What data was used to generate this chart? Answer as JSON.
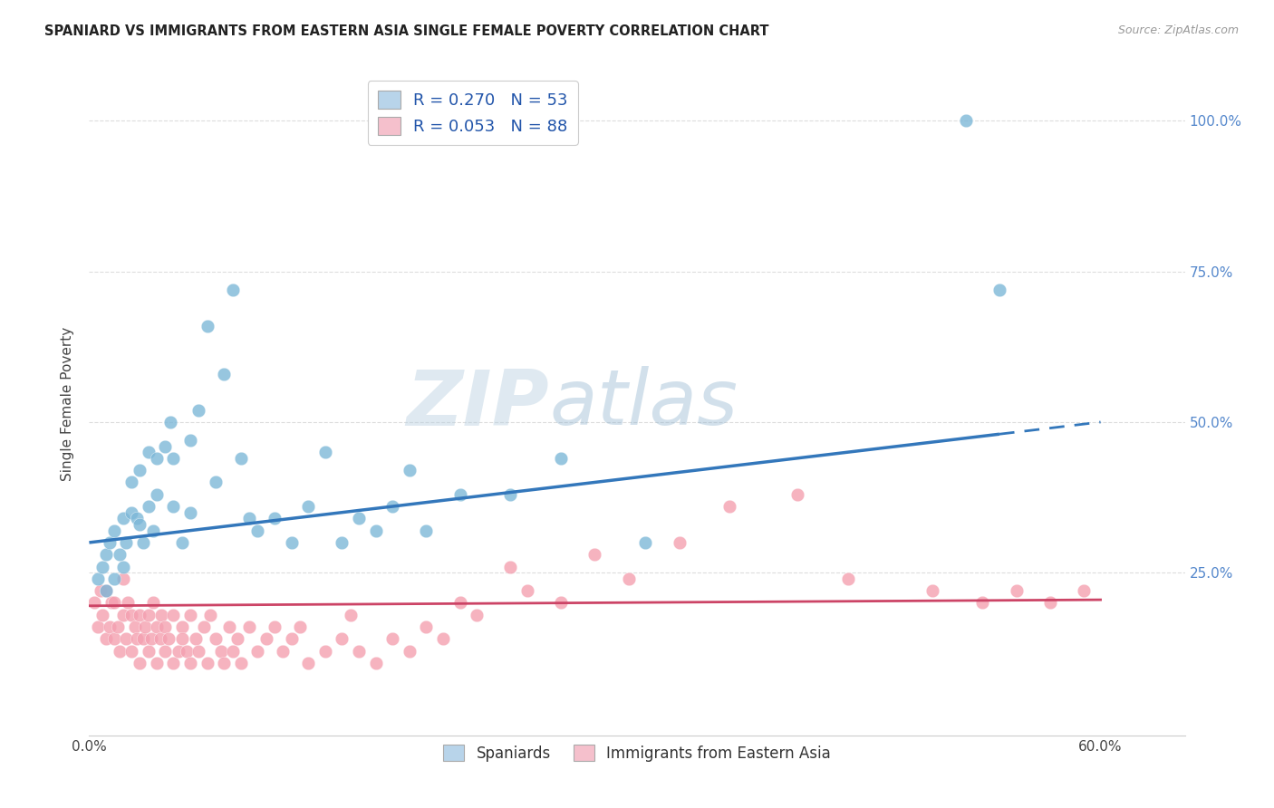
{
  "title": "SPANIARD VS IMMIGRANTS FROM EASTERN ASIA SINGLE FEMALE POVERTY CORRELATION CHART",
  "source": "Source: ZipAtlas.com",
  "ylabel": "Single Female Poverty",
  "yticks": [
    0.0,
    0.25,
    0.5,
    0.75,
    1.0
  ],
  "ytick_labels_right": [
    "",
    "25.0%",
    "50.0%",
    "75.0%",
    "100.0%"
  ],
  "xticks": [
    0.0,
    0.1,
    0.2,
    0.3,
    0.4,
    0.5,
    0.6
  ],
  "xtick_labels": [
    "0.0%",
    "",
    "",
    "",
    "",
    "",
    "60.0%"
  ],
  "xlim": [
    0.0,
    0.65
  ],
  "ylim": [
    -0.02,
    1.08
  ],
  "blue_R": 0.27,
  "blue_N": 53,
  "pink_R": 0.053,
  "pink_N": 88,
  "blue_color": "#7db8d8",
  "pink_color": "#f4a0b0",
  "blue_line_color": "#3377bb",
  "pink_line_color": "#cc4466",
  "blue_line_solid_end": 0.54,
  "blue_line_x0": 0.0,
  "blue_line_y0": 0.3,
  "blue_line_x1": 0.6,
  "blue_line_y1": 0.5,
  "pink_line_x0": 0.0,
  "pink_line_y0": 0.195,
  "pink_line_x1": 0.6,
  "pink_line_y1": 0.205,
  "legend_label_blue": "Spaniards",
  "legend_label_pink": "Immigrants from Eastern Asia",
  "watermark_zip": "ZIP",
  "watermark_atlas": "atlas",
  "background_color": "#ffffff",
  "grid_color": "#dddddd",
  "title_color": "#222222",
  "blue_scatter_x": [
    0.005,
    0.008,
    0.01,
    0.01,
    0.012,
    0.015,
    0.015,
    0.018,
    0.02,
    0.02,
    0.022,
    0.025,
    0.025,
    0.028,
    0.03,
    0.03,
    0.032,
    0.035,
    0.035,
    0.038,
    0.04,
    0.04,
    0.045,
    0.048,
    0.05,
    0.05,
    0.055,
    0.06,
    0.06,
    0.065,
    0.07,
    0.075,
    0.08,
    0.085,
    0.09,
    0.095,
    0.1,
    0.11,
    0.12,
    0.13,
    0.14,
    0.15,
    0.16,
    0.17,
    0.18,
    0.19,
    0.2,
    0.22,
    0.25,
    0.28,
    0.33,
    0.52,
    0.54
  ],
  "blue_scatter_y": [
    0.24,
    0.26,
    0.22,
    0.28,
    0.3,
    0.24,
    0.32,
    0.28,
    0.26,
    0.34,
    0.3,
    0.35,
    0.4,
    0.34,
    0.33,
    0.42,
    0.3,
    0.36,
    0.45,
    0.32,
    0.38,
    0.44,
    0.46,
    0.5,
    0.36,
    0.44,
    0.3,
    0.35,
    0.47,
    0.52,
    0.66,
    0.4,
    0.58,
    0.72,
    0.44,
    0.34,
    0.32,
    0.34,
    0.3,
    0.36,
    0.45,
    0.3,
    0.34,
    0.32,
    0.36,
    0.42,
    0.32,
    0.38,
    0.38,
    0.44,
    0.3,
    1.0,
    0.72
  ],
  "pink_scatter_x": [
    0.003,
    0.005,
    0.007,
    0.008,
    0.01,
    0.01,
    0.012,
    0.013,
    0.015,
    0.015,
    0.017,
    0.018,
    0.02,
    0.02,
    0.022,
    0.023,
    0.025,
    0.025,
    0.027,
    0.028,
    0.03,
    0.03,
    0.032,
    0.033,
    0.035,
    0.035,
    0.037,
    0.038,
    0.04,
    0.04,
    0.042,
    0.043,
    0.045,
    0.045,
    0.047,
    0.05,
    0.05,
    0.053,
    0.055,
    0.055,
    0.058,
    0.06,
    0.06,
    0.063,
    0.065,
    0.068,
    0.07,
    0.072,
    0.075,
    0.078,
    0.08,
    0.083,
    0.085,
    0.088,
    0.09,
    0.095,
    0.1,
    0.105,
    0.11,
    0.115,
    0.12,
    0.125,
    0.13,
    0.14,
    0.15,
    0.155,
    0.16,
    0.17,
    0.18,
    0.19,
    0.2,
    0.21,
    0.22,
    0.23,
    0.25,
    0.26,
    0.28,
    0.3,
    0.32,
    0.35,
    0.38,
    0.42,
    0.45,
    0.5,
    0.53,
    0.55,
    0.57,
    0.59
  ],
  "pink_scatter_y": [
    0.2,
    0.16,
    0.22,
    0.18,
    0.14,
    0.22,
    0.16,
    0.2,
    0.14,
    0.2,
    0.16,
    0.12,
    0.18,
    0.24,
    0.14,
    0.2,
    0.12,
    0.18,
    0.16,
    0.14,
    0.1,
    0.18,
    0.14,
    0.16,
    0.12,
    0.18,
    0.14,
    0.2,
    0.1,
    0.16,
    0.14,
    0.18,
    0.12,
    0.16,
    0.14,
    0.1,
    0.18,
    0.12,
    0.16,
    0.14,
    0.12,
    0.1,
    0.18,
    0.14,
    0.12,
    0.16,
    0.1,
    0.18,
    0.14,
    0.12,
    0.1,
    0.16,
    0.12,
    0.14,
    0.1,
    0.16,
    0.12,
    0.14,
    0.16,
    0.12,
    0.14,
    0.16,
    0.1,
    0.12,
    0.14,
    0.18,
    0.12,
    0.1,
    0.14,
    0.12,
    0.16,
    0.14,
    0.2,
    0.18,
    0.26,
    0.22,
    0.2,
    0.28,
    0.24,
    0.3,
    0.36,
    0.38,
    0.24,
    0.22,
    0.2,
    0.22,
    0.2,
    0.22
  ]
}
